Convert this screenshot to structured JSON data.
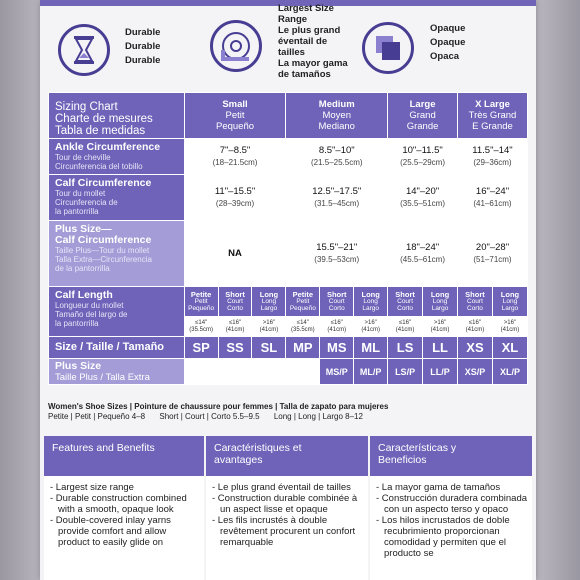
{
  "icons": {
    "durable": [
      "Durable",
      "Durable",
      "Durable"
    ],
    "range": [
      "Largest Size",
      "Range",
      "Le plus grand",
      "éventail de",
      "tailles",
      "La mayor gama",
      "de tamaños"
    ],
    "opaque": [
      "Opaque",
      "Opaque",
      "Opaca"
    ]
  },
  "chart": {
    "title": [
      "Sizing Chart",
      "Charte de mesures",
      "Tabla de medidas"
    ],
    "headers": [
      {
        "lines": [
          "Small",
          "Petit",
          "Pequeño"
        ]
      },
      {
        "lines": [
          "Medium",
          "Moyen",
          "Mediano"
        ]
      },
      {
        "lines": [
          "Large",
          "Grand",
          "Grande"
        ]
      },
      {
        "lines": [
          "X Large",
          "Très Grand",
          "E Grande"
        ]
      }
    ],
    "ankle": {
      "label": "Ankle Circumference",
      "sub": [
        "Tour de cheville",
        "Circunferencia del tobillo"
      ],
      "values": [
        [
          "7\"–8.5\"",
          "(18–21.5cm)"
        ],
        [
          "8.5\"–10\"",
          "(21.5–25.5cm)"
        ],
        [
          "10\"–11.5\"",
          "(25.5–29cm)"
        ],
        [
          "11.5\"–14\"",
          "(29–36cm)"
        ]
      ]
    },
    "calf": {
      "label": "Calf Circumference",
      "sub": [
        "Tour du mollet",
        "Circunferencia de",
        "la pantorrilla"
      ],
      "values": [
        [
          "11\"–15.5\"",
          "(28–39cm)"
        ],
        [
          "12.5\"–17.5\"",
          "(31.5–45cm)"
        ],
        [
          "14\"–20\"",
          "(35.5–51cm)"
        ],
        [
          "16\"–24\"",
          "(41–61cm)"
        ]
      ]
    },
    "plus": {
      "label": [
        "Plus Size—",
        "Calf Circumference"
      ],
      "sub": [
        "Taille Plus—Tour du mollet",
        "Talla Extra—Circunferencia",
        "de la pantorrilla"
      ],
      "values": [
        [
          "NA",
          ""
        ],
        [
          "15.5\"–21\"",
          "(39.5–53cm)"
        ],
        [
          "18\"–24\"",
          "(45.5–61cm)"
        ],
        [
          "20\"–28\"",
          "(51–71cm)"
        ]
      ]
    },
    "length": {
      "label": "Calf Length",
      "sub": [
        "Longueur du mollet",
        "Tamaño del largo de",
        "la pantorrilla"
      ],
      "types": [
        [
          "Petite",
          "Petit",
          "Pequeño"
        ],
        [
          "Short",
          "Court",
          "Corto"
        ],
        [
          "Long",
          "Long",
          "Largo"
        ],
        [
          "Petite",
          "Petit",
          "Pequeño"
        ],
        [
          "Short",
          "Court",
          "Corto"
        ],
        [
          "Long",
          "Long",
          "Largo"
        ],
        [
          "Short",
          "Court",
          "Corto"
        ],
        [
          "Long",
          "Long",
          "Largo"
        ],
        [
          "Short",
          "Court",
          "Corto"
        ],
        [
          "Long",
          "Long",
          "Largo"
        ]
      ],
      "values": [
        [
          "≤14\"",
          "(35.5cm)"
        ],
        [
          "≤16\"",
          "(41cm)"
        ],
        [
          ">16\"",
          "(41cm)"
        ],
        [
          "≤14\"",
          "(35.5cm)"
        ],
        [
          "≤16\"",
          "(41cm)"
        ],
        [
          ">16\"",
          "(41cm)"
        ],
        [
          "≤16\"",
          "(41cm)"
        ],
        [
          ">16\"",
          "(41cm)"
        ],
        [
          "≤16\"",
          "(41cm)"
        ],
        [
          ">16\"",
          "(41cm)"
        ]
      ]
    },
    "size_label": "Size / Taille / Tamaño",
    "sizes": [
      "SP",
      "SS",
      "SL",
      "MP",
      "MS",
      "ML",
      "LS",
      "LL",
      "XS",
      "XL"
    ],
    "plus_label": [
      "Plus Size",
      "Taille Plus / Talla Extra"
    ],
    "plus_sizes": [
      "MS/P",
      "ML/P",
      "LS/P",
      "LL/P",
      "XS/P",
      "XL/P"
    ]
  },
  "shoe": {
    "line1": "Women's Shoe Sizes | Pointure de chaussure pour femmes | Talla de zapato para mujeres",
    "petite": "Petite | Petit | Pequeño 4–8",
    "short": "Short | Court | Corto 5.5–9.5",
    "long": "Long | Long | Largo 8–12"
  },
  "features": [
    {
      "head": [
        "Features and Benefits"
      ],
      "items": [
        "- Largest size range",
        "- Durable construction combined with a smooth, opaque look",
        "- Double-covered inlay yarns provide comfort and allow product to easily glide on"
      ]
    },
    {
      "head": [
        "Caractéristiques et",
        "avantages"
      ],
      "items": [
        "- Le plus grand éventail de tailles",
        "- Construction durable combinée à un aspect lisse et opaque",
        "- Les fils incrustés à double revêtement procurent un confort remarquable"
      ]
    },
    {
      "head": [
        "Características y",
        "Beneficios"
      ],
      "items": [
        "- La mayor gama de tamaños",
        "- Construcción duradera combinada con un aspecto terso y opaco",
        "- Los hilos incrustados de doble recubrimiento proporcionan comodidad y permiten que el producto se"
      ]
    }
  ],
  "colors": {
    "purple": "#6e63b8",
    "light_purple": "#a49cd6",
    "icon_ring": "#473e93"
  }
}
